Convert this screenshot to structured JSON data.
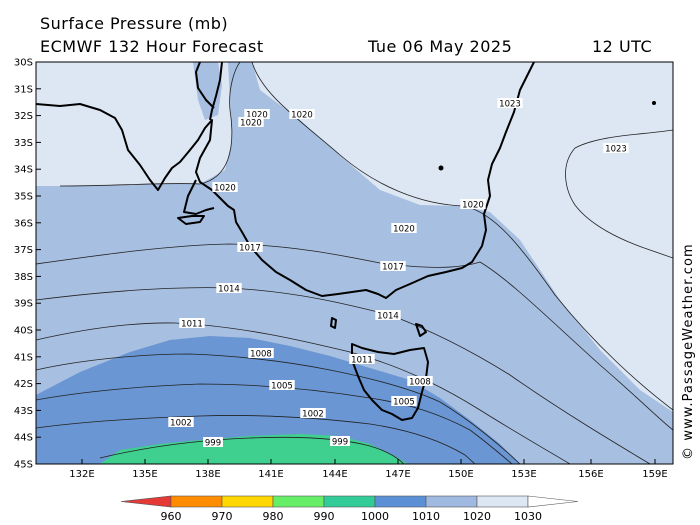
{
  "header": {
    "title": "Surface Pressure (mb)",
    "model": "ECMWF 132 Hour Forecast",
    "date": "Tue 06 May 2025",
    "time": "12 UTC"
  },
  "watermark": "© www.PassageWeather.com",
  "axes": {
    "lat_labels": [
      "30S",
      "31S",
      "32S",
      "33S",
      "34S",
      "35S",
      "36S",
      "37S",
      "38S",
      "39S",
      "40S",
      "41S",
      "42S",
      "43S",
      "44S",
      "45S"
    ],
    "lon_labels": [
      "132E",
      "135E",
      "138E",
      "141E",
      "144E",
      "147E",
      "150E",
      "153E",
      "156E",
      "159E"
    ]
  },
  "isobar_labels": [
    {
      "id": "l1020a",
      "text": "1020"
    },
    {
      "id": "l1020b",
      "text": "1020"
    },
    {
      "id": "l1020c",
      "text": "1020"
    },
    {
      "id": "l1020d",
      "text": "1020"
    },
    {
      "id": "l1020e",
      "text": "1020"
    },
    {
      "id": "l1020f",
      "text": "1020"
    },
    {
      "id": "l1023a",
      "text": "1023"
    },
    {
      "id": "l1023b",
      "text": "1023"
    },
    {
      "id": "l1017a",
      "text": "1017"
    },
    {
      "id": "l1017b",
      "text": "1017"
    },
    {
      "id": "l1014a",
      "text": "1014"
    },
    {
      "id": "l1014b",
      "text": "1014"
    },
    {
      "id": "l1011a",
      "text": "1011"
    },
    {
      "id": "l1011b",
      "text": "1011"
    },
    {
      "id": "l1008a",
      "text": "1008"
    },
    {
      "id": "l1008b",
      "text": "1008"
    },
    {
      "id": "l1005a",
      "text": "1005"
    },
    {
      "id": "l1005b",
      "text": "1005"
    },
    {
      "id": "l1002a",
      "text": "1002"
    },
    {
      "id": "l1002b",
      "text": "1002"
    },
    {
      "id": "l999a",
      "text": "999"
    },
    {
      "id": "l999b",
      "text": "999"
    }
  ],
  "legend": {
    "labels": [
      "960",
      "970",
      "980",
      "990",
      "1000",
      "1010",
      "1020",
      "1030"
    ],
    "colors": [
      "#e53935",
      "#ff8c00",
      "#ffd700",
      "#66ee66",
      "#33cc99",
      "#5b8fd6",
      "#9fb9e0",
      "#dde6f3"
    ]
  },
  "colors": {
    "band_1020plus": "#dde6f3",
    "band_1010_1020": "#a7bfe0",
    "band_1000_1010": "#6a96d3",
    "band_990_1000": "#3fcf8e"
  }
}
